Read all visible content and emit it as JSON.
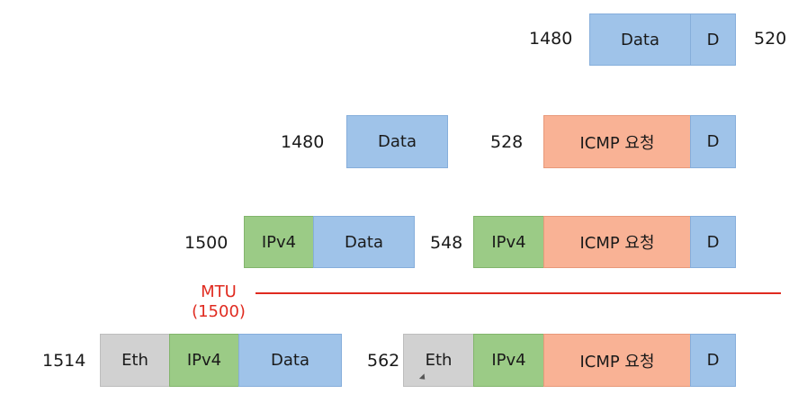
{
  "rows": {
    "row1": {
      "left_size": "1480",
      "right_size": "520",
      "blocks": [
        "Data",
        "D"
      ]
    },
    "row2": {
      "left_size": "1480",
      "left_blocks": [
        "Data"
      ],
      "right_size": "528",
      "right_blocks": [
        "ICMP 요청",
        "D"
      ]
    },
    "row3": {
      "left_size": "1500",
      "left_blocks": [
        "IPv4",
        "Data"
      ],
      "right_size": "548",
      "right_blocks": [
        "IPv4",
        "ICMP 요청",
        "D"
      ]
    },
    "row4": {
      "left_size": "1514",
      "left_blocks": [
        "Eth",
        "IPv4",
        "Data"
      ],
      "right_size": "562",
      "right_blocks": [
        "Eth",
        "IPv4",
        "ICMP 요청",
        "D"
      ]
    }
  },
  "mtu": {
    "label": "MTU",
    "value": "(1500)",
    "color": "#e02b20"
  },
  "colors": {
    "data": "#9fc3e9",
    "ipv4": "#9bcb86",
    "icmp": "#f9b295",
    "eth": "#d1d1d1"
  }
}
